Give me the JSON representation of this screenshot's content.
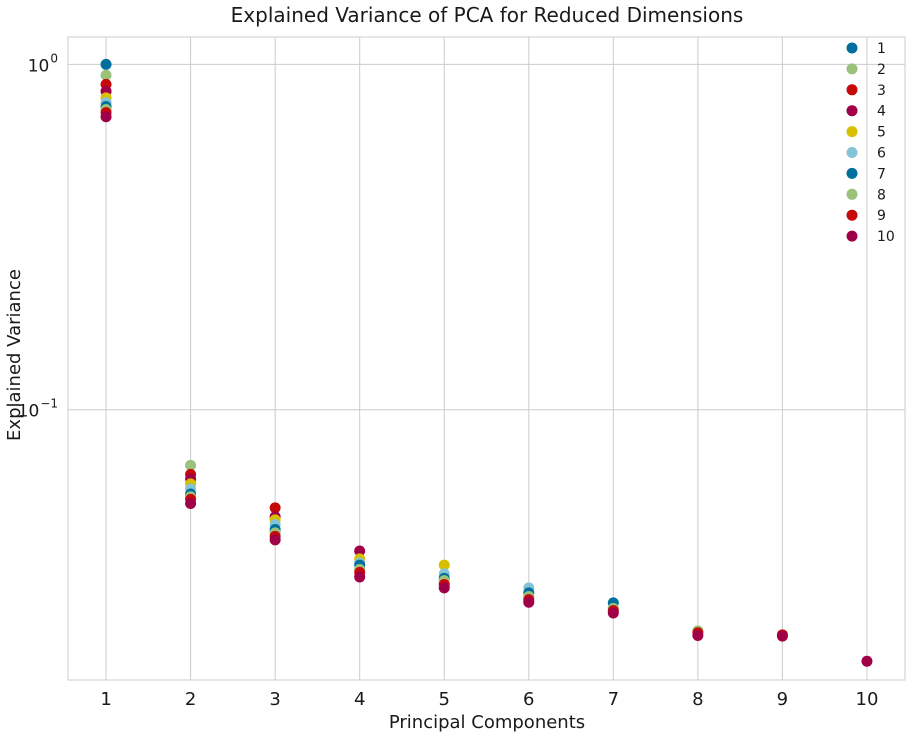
{
  "chart_data": {
    "type": "scatter",
    "title": "Explained Variance of PCA for Reduced Dimensions",
    "xlabel": "Principal Components",
    "ylabel": "Explained Variance",
    "xscale": "linear",
    "yscale": "log",
    "xlim": [
      0.55,
      10.45
    ],
    "ylim": [
      0.0165,
      1.2
    ],
    "x_ticks": [
      1,
      2,
      3,
      4,
      5,
      6,
      7,
      8,
      9,
      10
    ],
    "x_tick_labels": [
      "1",
      "2",
      "3",
      "4",
      "5",
      "6",
      "7",
      "8",
      "9",
      "10"
    ],
    "y_ticks": [
      1.0,
      0.1
    ],
    "y_tick_labels": [
      {
        "base": "10",
        "exp": "0"
      },
      {
        "base": "10",
        "exp": "−1"
      }
    ],
    "grid": true,
    "legend_position": "top-right",
    "series": [
      {
        "name": "1",
        "color": "#006f9e",
        "x": [
          1
        ],
        "y": [
          1.0
        ]
      },
      {
        "name": "2",
        "color": "#9ac27a",
        "x": [
          1,
          2
        ],
        "y": [
          0.93,
          0.069
        ]
      },
      {
        "name": "3",
        "color": "#c60a0a",
        "x": [
          1,
          2,
          3
        ],
        "y": [
          0.875,
          0.065,
          0.052
        ]
      },
      {
        "name": "4",
        "color": "#a00048",
        "x": [
          1,
          2,
          3,
          4
        ],
        "y": [
          0.835,
          0.063,
          0.049,
          0.039
        ]
      },
      {
        "name": "5",
        "color": "#d8c000",
        "x": [
          1,
          2,
          3,
          4,
          5
        ],
        "y": [
          0.8,
          0.061,
          0.048,
          0.037,
          0.0355
        ]
      },
      {
        "name": "6",
        "color": "#85c3d6",
        "x": [
          1,
          2,
          3,
          4,
          5,
          6
        ],
        "y": [
          0.775,
          0.059,
          0.0465,
          0.036,
          0.0335,
          0.0305
        ]
      },
      {
        "name": "7",
        "color": "#006f9e",
        "x": [
          1,
          2,
          3,
          4,
          5,
          6,
          7
        ],
        "y": [
          0.755,
          0.057,
          0.045,
          0.0355,
          0.0325,
          0.0295,
          0.0276
        ]
      },
      {
        "name": "8",
        "color": "#9ac27a",
        "x": [
          1,
          2,
          3,
          4,
          5,
          6,
          7,
          8
        ],
        "y": [
          0.74,
          0.056,
          0.044,
          0.0345,
          0.032,
          0.0288,
          0.0266,
          0.0229
        ]
      },
      {
        "name": "9",
        "color": "#c60a0a",
        "x": [
          1,
          2,
          3,
          4,
          5,
          6,
          7,
          8,
          9
        ],
        "y": [
          0.725,
          0.055,
          0.043,
          0.0338,
          0.0312,
          0.0282,
          0.0262,
          0.0226,
          0.0223
        ]
      },
      {
        "name": "10",
        "color": "#a00048",
        "x": [
          1,
          2,
          3,
          4,
          5,
          6,
          7,
          8,
          9,
          10
        ],
        "y": [
          0.705,
          0.0535,
          0.042,
          0.0328,
          0.0305,
          0.0277,
          0.0258,
          0.0222,
          0.0221,
          0.0187
        ]
      }
    ]
  }
}
